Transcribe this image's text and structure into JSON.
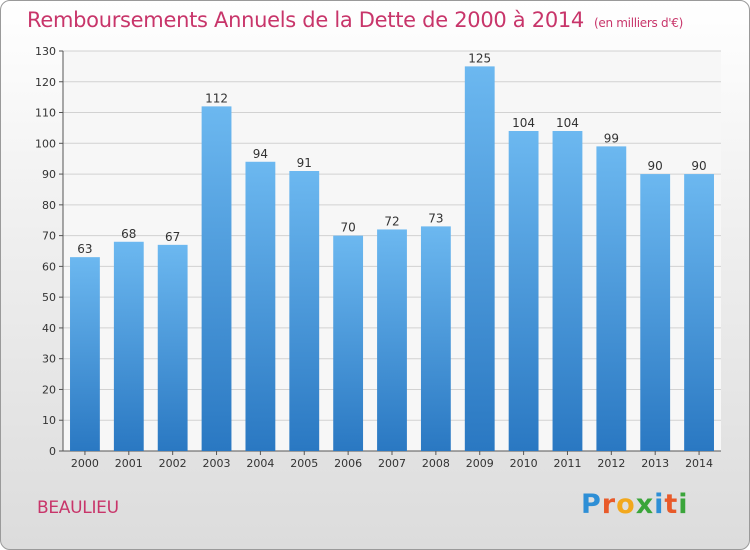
{
  "header": {
    "title": "Remboursements Annuels de la Dette de 2000 à 2014",
    "subtitle": "(en milliers d'€)"
  },
  "footer": {
    "commune": "BEAULIEU",
    "logo": {
      "text": "Proxiti",
      "letters": [
        {
          "char": "P",
          "color": "#2e8fd6"
        },
        {
          "char": "r",
          "color": "#e85a2a"
        },
        {
          "char": "o",
          "color": "#f2a81d"
        },
        {
          "char": "x",
          "color": "#3aa53a"
        },
        {
          "char": "i",
          "color": "#2e8fd6"
        },
        {
          "char": "t",
          "color": "#e85a2a"
        },
        {
          "char": "i",
          "color": "#3aa53a"
        }
      ]
    }
  },
  "colors": {
    "bar_light": "#6cb8f0",
    "bar_dark": "#2a78c2",
    "accent": "#c8356a"
  },
  "chart_data": {
    "type": "bar",
    "title": "Remboursements Annuels de la Dette de 2000 à 2014",
    "subtitle": "(en milliers d'€)",
    "categories": [
      "2000",
      "2001",
      "2002",
      "2003",
      "2004",
      "2005",
      "2006",
      "2007",
      "2008",
      "2009",
      "2010",
      "2011",
      "2012",
      "2013",
      "2014"
    ],
    "values": [
      63,
      68,
      67,
      112,
      94,
      91,
      70,
      72,
      73,
      125,
      104,
      104,
      99,
      90,
      90
    ],
    "ylim": [
      0,
      130
    ],
    "yticks": [
      0,
      10,
      20,
      30,
      40,
      50,
      60,
      70,
      80,
      90,
      100,
      110,
      120,
      130
    ],
    "xlabel": "",
    "ylabel": "",
    "grid": "horizontal",
    "legend": "none"
  }
}
